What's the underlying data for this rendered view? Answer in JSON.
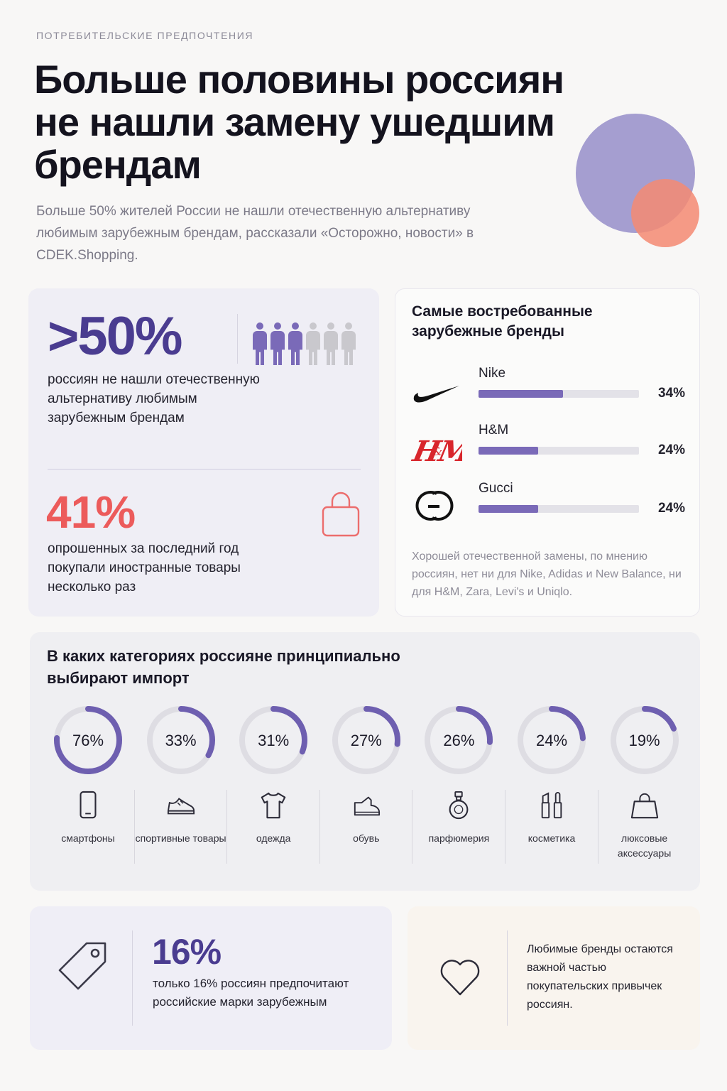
{
  "header": {
    "eyebrow": "ПОТРЕБИТЕЛЬСКИЕ ПРЕДПОЧТЕНИЯ",
    "title": "Больше половины россиян не нашли замену ушедшим брендам",
    "lead": "Больше 50% жителей России не нашли отечественную альтернативу любимым зарубежным брендам, рассказали «Осторожно, новости» в CDEK.Shopping."
  },
  "stats": {
    "main_value": ">50%",
    "main_text": "россиян не нашли отечественную альтернативу любимым зарубежным брендам",
    "people_highlighted": 3,
    "people_total": 6,
    "second_value": "41%",
    "second_text": "опрошенных за последний год покупали иностранные товары несколько раз"
  },
  "brands": {
    "title": "Самые востребованные зарубежные бренды",
    "items": [
      {
        "name": "Nike",
        "value": 34,
        "label": "34%",
        "logo": "nike-swoosh-icon"
      },
      {
        "name": "H&M",
        "value": 24,
        "label": "24%",
        "logo": "hm-logo"
      },
      {
        "name": "Gucci",
        "value": 24,
        "label": "24%",
        "logo": "gucci-logo"
      }
    ],
    "note": "Хорошей отечественной замены, по мнению россиян, нет ни для Nike, Adidas и New Balance, ни для H&M, Zara, Levi's и Uniqlo."
  },
  "categories": {
    "title": "В каких категориях россияне принципиально выбирают импорт",
    "items": [
      {
        "value": 76,
        "label": "76%",
        "name": "смартфоны",
        "icon": "smartphone-icon"
      },
      {
        "value": 33,
        "label": "33%",
        "name": "спортивные товары",
        "icon": "sneaker-icon"
      },
      {
        "value": 31,
        "label": "31%",
        "name": "одежда",
        "icon": "tshirt-icon"
      },
      {
        "value": 27,
        "label": "27%",
        "name": "обувь",
        "icon": "shoe-icon"
      },
      {
        "value": 26,
        "label": "26%",
        "name": "парфюмерия",
        "icon": "perfume-icon"
      },
      {
        "value": 24,
        "label": "24%",
        "name": "косметика",
        "icon": "lipstick-icon"
      },
      {
        "value": 19,
        "label": "19%",
        "name": "люксовые аксессуары",
        "icon": "handbag-icon"
      }
    ]
  },
  "bottom": {
    "local_value": "16%",
    "local_text": "только 16% россиян предпочитают российские марки зарубежным",
    "fav_text": "Любимые бренды остаются важной частью покупательских привычек россиян."
  },
  "colors": {
    "accent": "#4a3c90",
    "bar": "#7a6ab8",
    "ring": "#6e5fb0",
    "ring_track": "#dedde3",
    "red": "#ec5b5b"
  }
}
